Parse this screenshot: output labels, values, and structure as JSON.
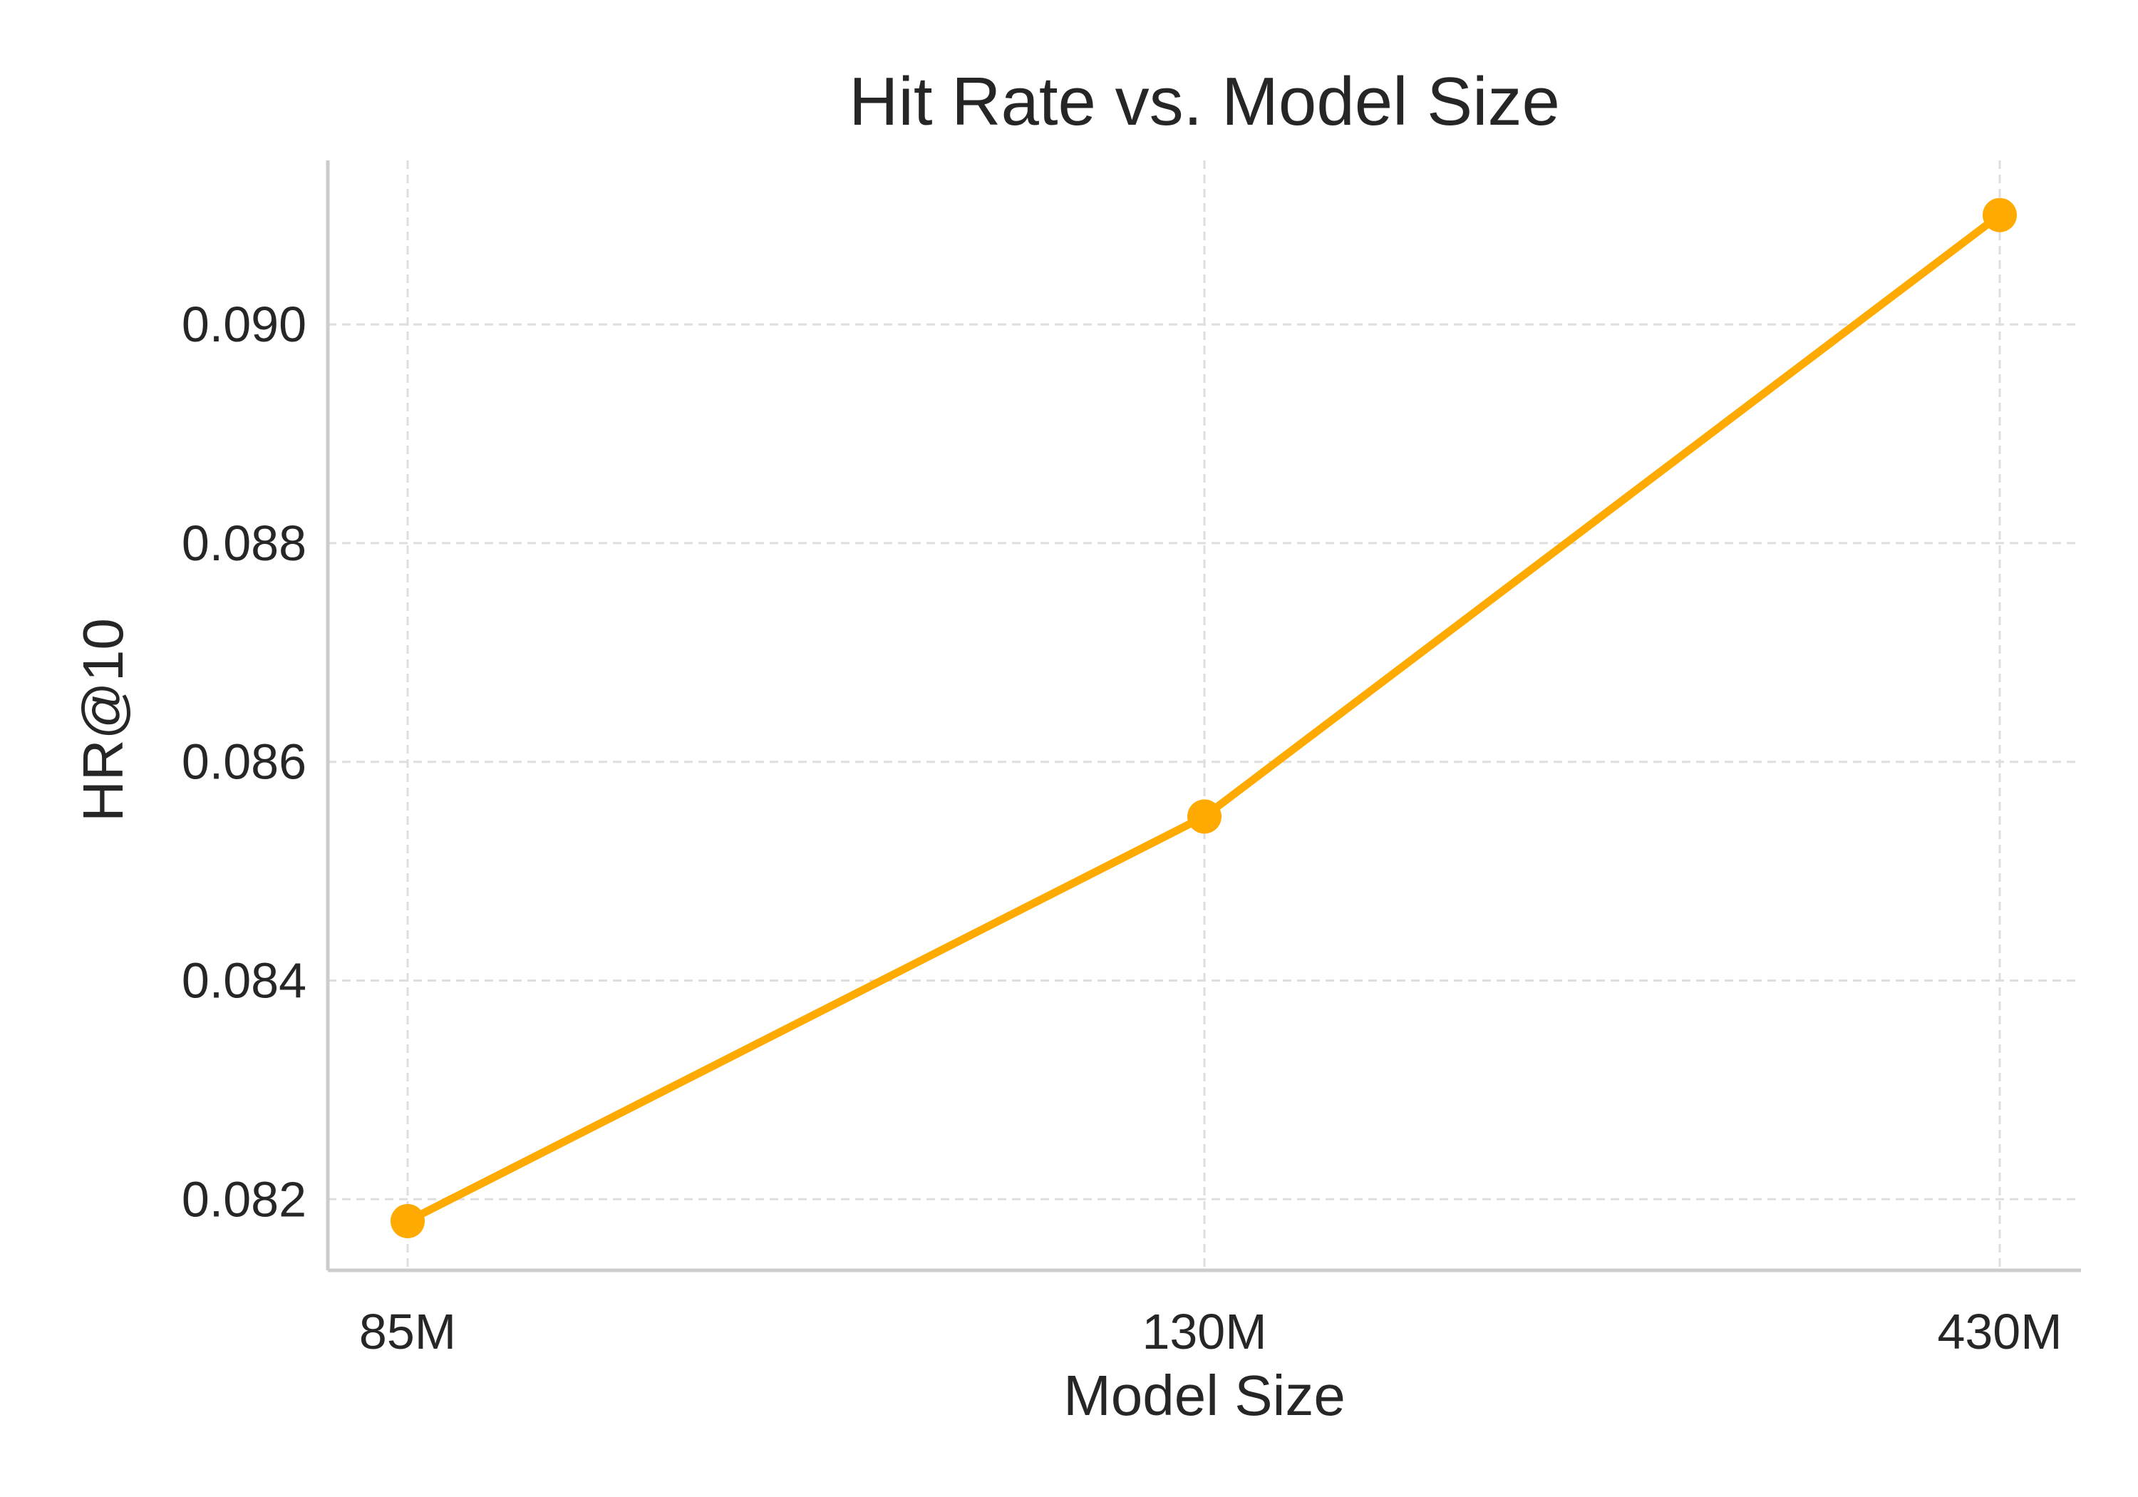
{
  "chart_data": {
    "type": "line",
    "title": "Hit Rate vs. Model Size",
    "xlabel": "Model Size",
    "ylabel": "HR@10",
    "categories": [
      "85M",
      "130M",
      "430M"
    ],
    "series": [
      {
        "values": [
          0.0818,
          0.0855,
          0.091
        ],
        "color": "#ffaa00",
        "marker": "circle"
      }
    ],
    "yticks": [
      0.082,
      0.084,
      0.086,
      0.088,
      0.09
    ],
    "ytick_labels": [
      "0.082",
      "0.084",
      "0.086",
      "0.088",
      "0.090"
    ],
    "ylim": [
      0.08135,
      0.0915
    ],
    "grid": true,
    "legend": "none"
  }
}
